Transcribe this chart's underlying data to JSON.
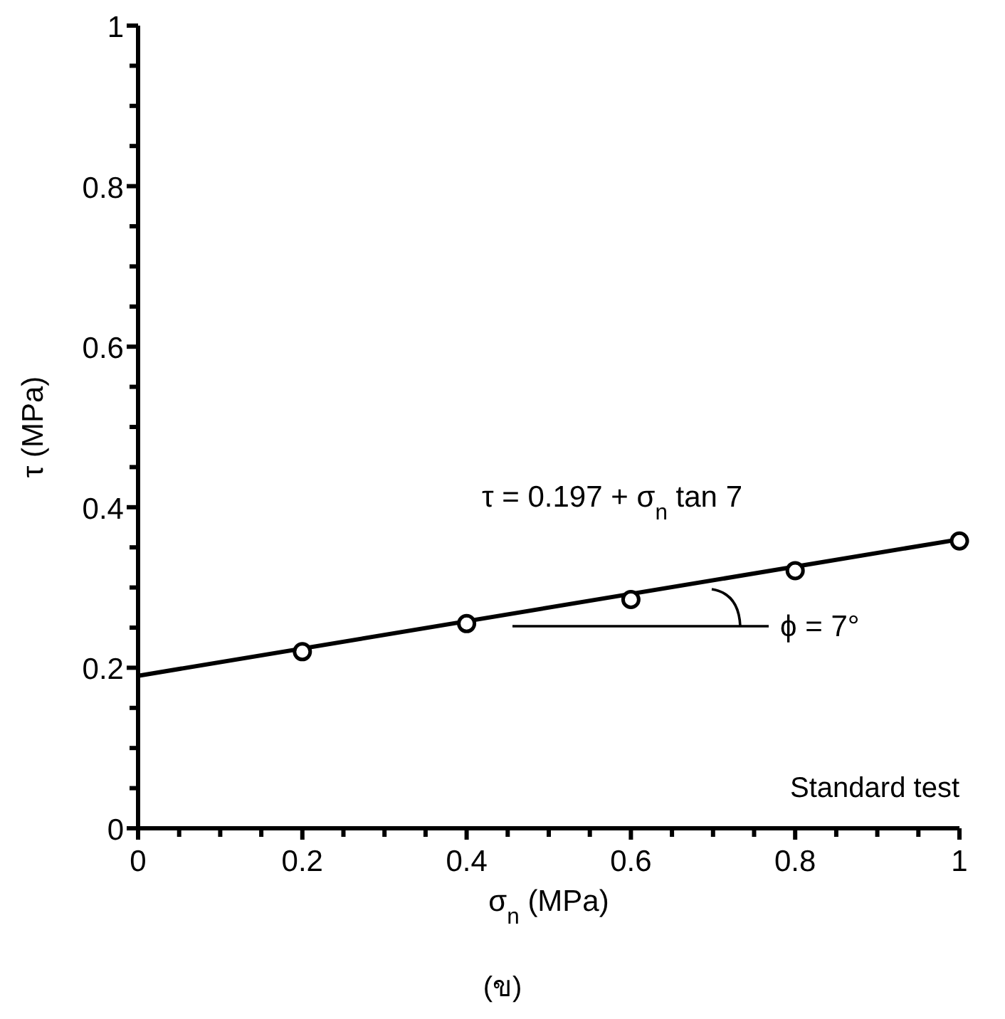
{
  "chart_data": {
    "type": "scatter",
    "xlabel": "σ$_{n}$  (MPa)",
    "ylabel": "τ (MPa)",
    "series": [
      {
        "color": "#000000",
        "marker": "circle",
        "x": [
          0.2,
          0.4,
          0.6,
          0.8,
          1.0
        ],
        "values": [
          0.22,
          0.255,
          0.285,
          0.321,
          0.358
        ]
      },
      {
        "type": "line",
        "color": "#000000",
        "marker": "none",
        "line_style": "solid",
        "x": [
          0,
          1
        ],
        "values": [
          0.19,
          0.36
        ]
      }
    ],
    "xlim": [
      0,
      1
    ],
    "ylim": [
      0,
      1
    ],
    "xticks": [
      0,
      {
        "value": 0.05,
        "label": null
      },
      {
        "value": 0.1,
        "label": null
      },
      {
        "value": 0.15,
        "label": null
      },
      0.2,
      {
        "value": 0.25,
        "label": null
      },
      {
        "value": 0.3,
        "label": null
      },
      {
        "value": 0.35,
        "label": null
      },
      0.4,
      {
        "value": 0.45,
        "label": null
      },
      {
        "value": 0.5,
        "label": null
      },
      {
        "value": 0.55,
        "label": null
      },
      0.6,
      {
        "value": 0.65,
        "label": null
      },
      {
        "value": 0.7,
        "label": null
      },
      {
        "value": 0.75,
        "label": null
      },
      0.8,
      {
        "value": 0.85,
        "label": null
      },
      {
        "value": 0.9,
        "label": null
      },
      {
        "value": 0.95,
        "label": null
      },
      1
    ],
    "yticks": [
      0,
      {
        "value": 0.05,
        "label": null
      },
      {
        "value": 0.1,
        "label": null
      },
      {
        "value": 0.15,
        "label": null
      },
      0.2,
      {
        "value": 0.25,
        "label": null
      },
      {
        "value": 0.3,
        "label": null
      },
      {
        "value": 0.35,
        "label": null
      },
      0.4,
      {
        "value": 0.45,
        "label": null
      },
      {
        "value": 0.5,
        "label": null
      },
      {
        "value": 0.55,
        "label": null
      },
      0.6,
      {
        "value": 0.65,
        "label": null
      },
      {
        "value": 0.7,
        "label": null
      },
      {
        "value": 0.75,
        "label": null
      },
      0.8,
      {
        "value": 0.85,
        "label": null
      },
      {
        "value": 0.9,
        "label": null
      },
      {
        "value": 0.95,
        "label": null
      },
      1
    ],
    "annotations": [
      "τ = 0.197 + σ$_{n}$ tan 7",
      "ϕ = 7°",
      "Standard test",
      "(ข)"
    ],
    "grid": false
  }
}
